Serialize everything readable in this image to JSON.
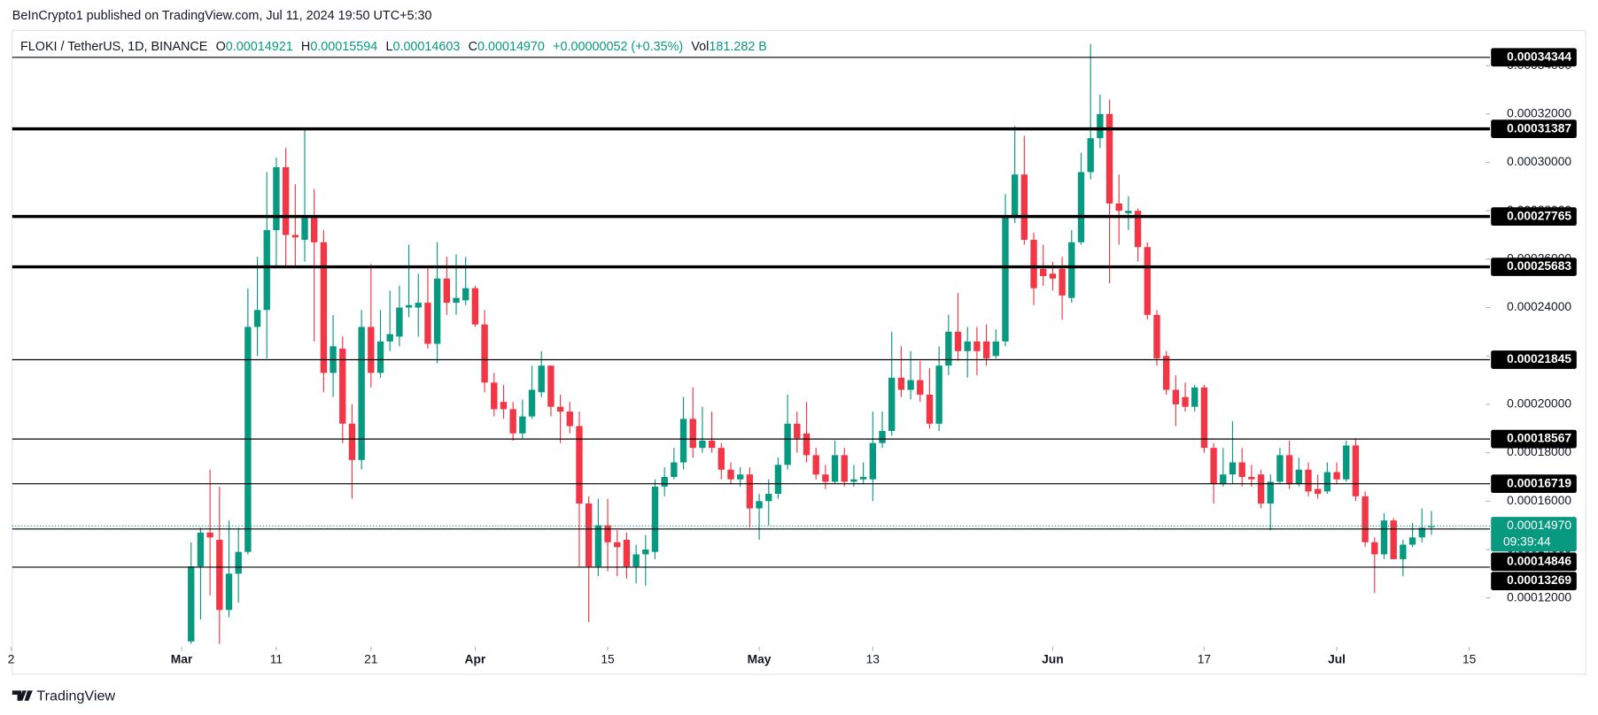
{
  "header": {
    "published": "BeInCrypto1 published on TradingView.com, Jul 11, 2024 19:50 UTC+5:30"
  },
  "chart_data": {
    "type": "candlestick",
    "legend": {
      "symbol": "FLOKI / TetherUS, 1D, BINANCE",
      "fields": [
        {
          "key": "O",
          "value": "0.00014921"
        },
        {
          "key": "H",
          "value": "0.00015594"
        },
        {
          "key": "L",
          "value": "0.00014603"
        },
        {
          "key": "C",
          "value": "0.00014970"
        }
      ],
      "change": "+0.00000052 (+0.35%)",
      "volume_key": "Vol",
      "volume": "181.282 B"
    },
    "x": [
      "2024-03-02",
      "2024-03-03",
      "2024-03-04",
      "2024-03-05",
      "2024-03-06",
      "2024-03-07",
      "2024-03-08",
      "2024-03-09",
      "2024-03-10",
      "2024-03-11",
      "2024-03-12",
      "2024-03-13",
      "2024-03-14",
      "2024-03-15",
      "2024-03-16",
      "2024-03-17",
      "2024-03-18",
      "2024-03-19",
      "2024-03-20",
      "2024-03-21",
      "2024-03-22",
      "2024-03-23",
      "2024-03-24",
      "2024-03-25",
      "2024-03-26",
      "2024-03-27",
      "2024-03-28",
      "2024-03-29",
      "2024-03-30",
      "2024-03-31",
      "2024-04-01",
      "2024-04-02",
      "2024-04-03",
      "2024-04-04",
      "2024-04-05",
      "2024-04-06",
      "2024-04-07",
      "2024-04-08",
      "2024-04-09",
      "2024-04-10",
      "2024-04-11",
      "2024-04-12",
      "2024-04-13",
      "2024-04-14",
      "2024-04-15",
      "2024-04-16",
      "2024-04-17",
      "2024-04-18",
      "2024-04-19",
      "2024-04-20",
      "2024-04-21",
      "2024-04-22",
      "2024-04-23",
      "2024-04-24",
      "2024-04-25",
      "2024-04-26",
      "2024-04-27",
      "2024-04-28",
      "2024-04-29",
      "2024-04-30",
      "2024-05-01",
      "2024-05-02",
      "2024-05-03",
      "2024-05-04",
      "2024-05-05",
      "2024-05-06",
      "2024-05-07",
      "2024-05-08",
      "2024-05-09",
      "2024-05-10",
      "2024-05-11",
      "2024-05-12",
      "2024-05-13",
      "2024-05-14",
      "2024-05-15",
      "2024-05-16",
      "2024-05-17",
      "2024-05-18",
      "2024-05-19",
      "2024-05-20",
      "2024-05-21",
      "2024-05-22",
      "2024-05-23",
      "2024-05-24",
      "2024-05-25",
      "2024-05-26",
      "2024-05-27",
      "2024-05-28",
      "2024-05-29",
      "2024-05-30",
      "2024-05-31",
      "2024-06-01",
      "2024-06-02",
      "2024-06-03",
      "2024-06-04",
      "2024-06-05",
      "2024-06-06",
      "2024-06-07",
      "2024-06-08",
      "2024-06-09",
      "2024-06-10",
      "2024-06-11",
      "2024-06-12",
      "2024-06-13",
      "2024-06-14",
      "2024-06-15",
      "2024-06-16",
      "2024-06-17",
      "2024-06-18",
      "2024-06-19",
      "2024-06-20",
      "2024-06-21",
      "2024-06-22",
      "2024-06-23",
      "2024-06-24",
      "2024-06-25",
      "2024-06-26",
      "2024-06-27",
      "2024-06-28",
      "2024-06-29",
      "2024-06-30",
      "2024-07-01",
      "2024-07-02",
      "2024-07-03",
      "2024-07-04",
      "2024-07-05",
      "2024-07-06",
      "2024-07-07",
      "2024-07-08",
      "2024-07-09",
      "2024-07-10",
      "2024-07-11"
    ],
    "open": [
      0.000102,
      0.000133,
      0.000147,
      0.000144,
      0.000115,
      0.00013,
      0.000139,
      0.000232,
      0.000239,
      0.000272,
      0.000298,
      0.00027,
      0.000268,
      0.000277,
      0.000267,
      0.000213,
      0.000223,
      0.000192,
      0.000177,
      0.000232,
      0.000213,
      0.000226,
      0.000228,
      0.00024,
      0.00024,
      0.000242,
      0.000225,
      0.000252,
      0.000242,
      0.000243,
      0.000248,
      0.000233,
      0.000209,
      0.000201,
      0.000198,
      0.000188,
      0.000195,
      0.000205,
      0.000216,
      0.000199,
      0.000197,
      0.000191,
      0.000159,
      0.000133,
      0.00015,
      0.000143,
      0.000144,
      0.000133,
      0.000138,
      0.000139,
      0.000166,
      0.00017,
      0.000176,
      0.000194,
      0.000182,
      0.000185,
      0.000182,
      0.000173,
      0.000169,
      0.000171,
      0.000157,
      0.00016,
      0.000163,
      0.000175,
      0.000192,
      0.000188,
      0.000179,
      0.000171,
      0.000168,
      0.000179,
      0.000168,
      0.000169,
      0.000169,
      0.000184,
      0.000189,
      0.000211,
      0.000206,
      0.00021,
      0.000204,
      0.000192,
      0.000216,
      0.00023,
      0.000222,
      0.000226,
      0.000226,
      0.00022,
      0.000226,
      0.000278,
      0.000295,
      0.000268,
      0.000256,
      0.000254,
      0.000256,
      0.000244,
      0.000267,
      0.000296,
      0.00031,
      0.00032,
      0.000283,
      0.000279,
      0.00028,
      0.000265,
      0.000237,
      0.00022,
      0.000206,
      0.000203,
      0.000199,
      0.000207,
      0.000182,
      0.000167,
      0.000171,
      0.000176,
      0.00017,
      0.000171,
      0.000159,
      0.000168,
      0.000179,
      0.000167,
      0.000173,
      0.000165,
      0.000164,
      0.000172,
      0.000169,
      0.000183,
      0.000162,
      0.000143,
      0.000138,
      0.000152,
      0.000136,
      0.000142,
      0.000145,
      0.00014921
    ],
    "high": [
      0.000143,
      0.000149,
      0.000173,
      0.000166,
      0.000152,
      0.000149,
      0.000248,
      0.000261,
      0.000296,
      0.000302,
      0.000306,
      0.000291,
      0.000314,
      0.000289,
      0.000272,
      0.000237,
      0.000228,
      0.0002,
      0.000239,
      0.000258,
      0.000239,
      0.000247,
      0.000249,
      0.000266,
      0.000254,
      0.000257,
      0.000267,
      0.000261,
      0.000262,
      0.000261,
      0.000249,
      0.000239,
      0.000213,
      0.000208,
      0.000201,
      0.000202,
      0.000216,
      0.000222,
      0.000216,
      0.000204,
      0.000201,
      0.000197,
      0.000162,
      0.000161,
      0.000161,
      0.000148,
      0.000147,
      0.000142,
      0.000146,
      0.000169,
      0.000174,
      0.000182,
      0.000203,
      0.000207,
      0.000199,
      0.000197,
      0.000184,
      0.000176,
      0.000174,
      0.000174,
      0.000163,
      0.000169,
      0.000178,
      0.000204,
      0.000197,
      0.000201,
      0.000182,
      0.000175,
      0.000185,
      0.000182,
      0.000175,
      0.000176,
      0.000197,
      0.000197,
      0.00023,
      0.000224,
      0.000222,
      0.000218,
      0.000215,
      0.000224,
      0.000237,
      0.000246,
      0.000232,
      0.000232,
      0.000233,
      0.000231,
      0.000287,
      0.000315,
      0.000311,
      0.000271,
      0.000266,
      0.000259,
      0.000261,
      0.000272,
      0.000304,
      0.000349,
      0.000328,
      0.000326,
      0.000295,
      0.000286,
      0.000281,
      0.000267,
      0.000239,
      0.000222,
      0.000212,
      0.000209,
      0.000208,
      0.000208,
      0.000184,
      0.000182,
      0.000193,
      0.000182,
      0.000175,
      0.000173,
      0.000171,
      0.000182,
      0.000185,
      0.000178,
      0.000176,
      0.000171,
      0.000176,
      0.000176,
      0.000185,
      0.000186,
      0.000164,
      0.000145,
      0.000155,
      0.000153,
      0.000144,
      0.000151,
      0.000157,
      0.00015594
    ],
    "low": [
      0.000101,
      0.000111,
      0.000121,
      0.000101,
      0.000112,
      0.000118,
      0.000138,
      0.00022,
      0.000219,
      0.000257,
      0.000257,
      0.000257,
      0.000259,
      0.000226,
      0.000205,
      0.000203,
      0.000184,
      0.000161,
      0.000173,
      0.000207,
      0.000211,
      0.000222,
      0.000224,
      0.000236,
      0.000228,
      0.000223,
      0.000217,
      0.000237,
      0.000237,
      0.000241,
      0.000232,
      0.000205,
      0.000195,
      0.000194,
      0.000185,
      0.000186,
      0.000194,
      0.000203,
      0.000195,
      0.000184,
      0.000188,
      0.000133,
      0.00011,
      0.000129,
      0.000131,
      0.000129,
      0.000128,
      0.000126,
      0.000125,
      0.000136,
      0.000162,
      0.000169,
      0.000173,
      0.000178,
      0.00018,
      0.00018,
      0.000169,
      0.000167,
      0.000166,
      0.000149,
      0.000144,
      0.00015,
      0.000161,
      0.000173,
      0.00018,
      0.000176,
      0.000169,
      0.000165,
      0.000167,
      0.000166,
      0.000166,
      0.000167,
      0.00016,
      0.000182,
      0.000187,
      0.000203,
      0.000202,
      0.000201,
      0.00019,
      0.000189,
      0.000212,
      0.000218,
      0.000211,
      0.000212,
      0.000216,
      0.000219,
      0.000224,
      0.000275,
      0.000266,
      0.000241,
      0.000249,
      0.000247,
      0.000235,
      0.000242,
      0.000266,
      0.000293,
      0.000306,
      0.00025,
      0.000266,
      0.000272,
      0.000259,
      0.000235,
      0.000216,
      0.000204,
      0.000191,
      0.000197,
      0.000197,
      0.00018,
      0.000159,
      0.000166,
      0.000167,
      0.000166,
      0.000166,
      0.000157,
      0.000148,
      0.000167,
      0.000165,
      0.000166,
      0.000162,
      0.000161,
      0.000163,
      0.000167,
      0.000168,
      0.00016,
      0.000141,
      0.000122,
      0.000136,
      0.000136,
      0.000129,
      0.000141,
      0.000143,
      0.00014603
    ],
    "close": [
      0.000133,
      0.000147,
      0.000145,
      0.000115,
      0.00013,
      0.000139,
      0.000232,
      0.000239,
      0.000272,
      0.000298,
      0.00027,
      0.000269,
      0.000277,
      0.000267,
      0.000213,
      0.000224,
      0.000192,
      0.000177,
      0.000232,
      0.000213,
      0.000226,
      0.000229,
      0.00024,
      0.000241,
      0.000242,
      0.000225,
      0.000252,
      0.000242,
      0.000244,
      0.000248,
      0.000233,
      0.000209,
      0.000198,
      0.000198,
      0.000188,
      0.000195,
      0.000206,
      0.000216,
      0.000199,
      0.000197,
      0.000191,
      0.000159,
      0.000133,
      0.00015,
      0.000143,
      0.000141,
      0.000133,
      0.000138,
      0.00014,
      0.000166,
      0.00017,
      0.000176,
      0.000194,
      0.000182,
      0.000185,
      0.000182,
      0.000173,
      0.000169,
      0.000171,
      0.000157,
      0.00016,
      0.000163,
      0.000175,
      0.000192,
      0.000186,
      0.000179,
      0.000171,
      0.000168,
      0.000179,
      0.000168,
      0.000169,
      0.00017,
      0.000184,
      0.000189,
      0.000211,
      0.000206,
      0.00021,
      0.000204,
      0.000192,
      0.000216,
      0.00023,
      0.000222,
      0.000226,
      0.000222,
      0.000219,
      0.000226,
      0.000278,
      0.000295,
      0.000268,
      0.000248,
      0.000253,
      0.000252,
      0.000245,
      0.000267,
      0.000296,
      0.00031,
      0.00032,
      0.000283,
      0.00028,
      0.00028,
      0.000265,
      0.000237,
      0.000219,
      0.000206,
      0.0002,
      0.000199,
      0.000207,
      0.000182,
      0.000167,
      0.000171,
      0.000176,
      0.00017,
      0.000169,
      0.000159,
      0.000168,
      0.000179,
      0.000167,
      0.000173,
      0.000164,
      0.000163,
      0.000172,
      0.000169,
      0.000183,
      0.000162,
      0.000143,
      0.000138,
      0.000152,
      0.000136,
      0.000142,
      0.000145,
      0.000149,
      0.0001497
    ],
    "up_color": "#089981",
    "down_color": "#f23645",
    "xlim": [
      "2024-02-12",
      "2024-07-16"
    ],
    "xticks": [
      {
        "value": "2024-02-12",
        "label": "2"
      },
      {
        "value": "2024-03-01",
        "label": "Mar"
      },
      {
        "value": "2024-03-11",
        "label": "11"
      },
      {
        "value": "2024-03-21",
        "label": "21"
      },
      {
        "value": "2024-04-01",
        "label": "Apr"
      },
      {
        "value": "2024-04-15",
        "label": "15"
      },
      {
        "value": "2024-05-01",
        "label": "May"
      },
      {
        "value": "2024-05-13",
        "label": "13"
      },
      {
        "value": "2024-06-01",
        "label": "Jun"
      },
      {
        "value": "2024-06-17",
        "label": "17"
      },
      {
        "value": "2024-07-01",
        "label": "Jul"
      },
      {
        "value": "2024-07-15",
        "label": "15"
      }
    ],
    "ylim": [
      9.98e-05,
      0.0003545
    ],
    "yticks": [
      {
        "value": 0.00012,
        "label": "0.00012000"
      },
      {
        "value": 0.00014,
        "label": "0.00014000"
      },
      {
        "value": 0.00016,
        "label": "0.00016000"
      },
      {
        "value": 0.00018,
        "label": "0.00018000"
      },
      {
        "value": 0.0002,
        "label": "0.00020000"
      },
      {
        "value": 0.00022,
        "label": "0.00022000"
      },
      {
        "value": 0.00024,
        "label": "0.00024000"
      },
      {
        "value": 0.00026,
        "label": "0.00026000"
      },
      {
        "value": 0.00028,
        "label": "0.00028000"
      },
      {
        "value": 0.0003,
        "label": "0.00030000"
      },
      {
        "value": 0.00032,
        "label": "0.00032000"
      },
      {
        "value": 0.00034,
        "label": "0.00034000"
      }
    ],
    "levels": [
      {
        "value": 0.00034344,
        "bold": false
      },
      {
        "value": 0.00031387,
        "bold": true
      },
      {
        "value": 0.00027765,
        "bold": true
      },
      {
        "value": 0.00025683,
        "bold": true
      },
      {
        "value": 0.00021845,
        "bold": false
      },
      {
        "value": 0.00018567,
        "bold": false
      },
      {
        "value": 0.00016719,
        "bold": false
      },
      {
        "value": 0.00014846,
        "bold": false
      },
      {
        "value": 0.00013269,
        "bold": false
      }
    ],
    "last_price": {
      "value": 0.0001497,
      "label": "0.00014970"
    },
    "countdown": "09:39:44"
  },
  "footer": {
    "brand": "TradingView"
  }
}
